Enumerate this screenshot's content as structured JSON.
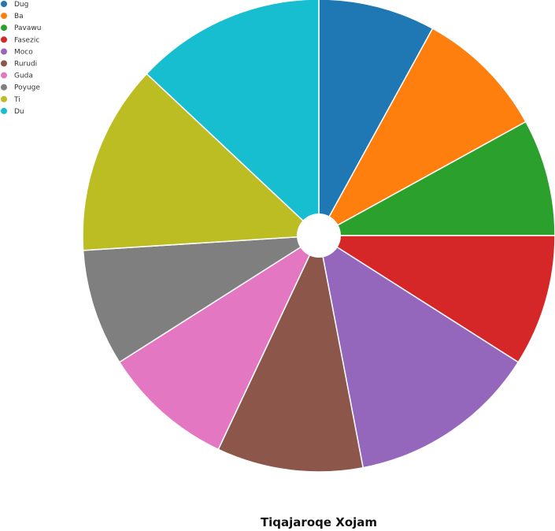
{
  "chart_data": {
    "type": "pie",
    "title": "Tiqajaroqe Xojam",
    "donut_hole": true,
    "legend_position": "top-left",
    "categories": [
      "Dug",
      "Ba",
      "Pavawu",
      "Fasezic",
      "Moco",
      "Rurudi",
      "Guda",
      "Poyuge",
      "Ti",
      "Du"
    ],
    "values": [
      8,
      9,
      8,
      9,
      13,
      10,
      9,
      8,
      13,
      13
    ],
    "colors": [
      "#1f77b4",
      "#ff7f0e",
      "#2ca02c",
      "#d62728",
      "#9467bd",
      "#8c564b",
      "#e377c2",
      "#7f7f7f",
      "#bcbd22",
      "#17becf"
    ]
  }
}
